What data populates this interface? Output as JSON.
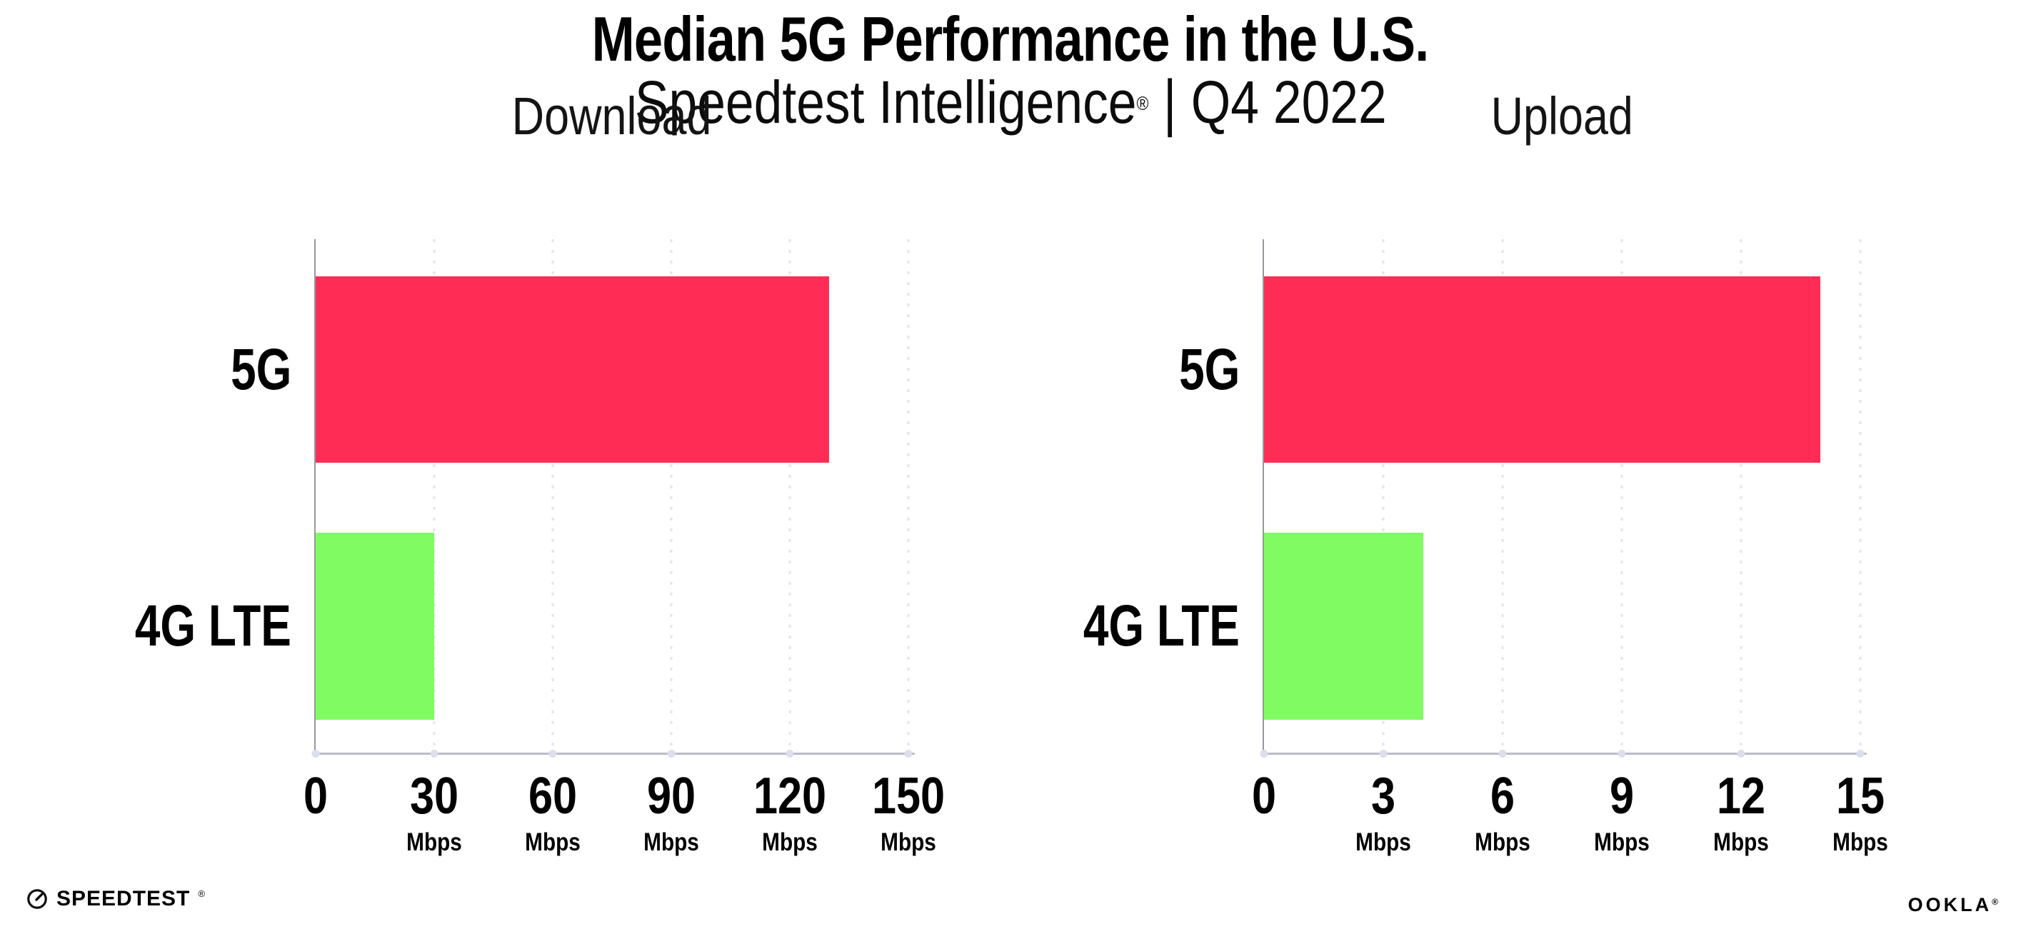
{
  "title": "Median 5G Performance in the U.S.",
  "subtitle": {
    "brand": "Speedtest Intelligence",
    "mark": "®",
    "separator": "|",
    "period": "Q4 2022"
  },
  "colors": {
    "bar_5g": "#ff2d55",
    "bar_4g_lte": "#81fb62",
    "gridline": "#e2e3ee",
    "axis_line": "#b9bcc6",
    "axis_spine": "#97979f",
    "tick_dot": "#dbdfeb",
    "text": "#000000"
  },
  "chart_data": [
    {
      "type": "bar",
      "orientation": "horizontal",
      "title": "Download",
      "categories": [
        "5G",
        "4G LTE"
      ],
      "values": [
        130,
        30
      ],
      "unit": "Mbps",
      "xlim": [
        0,
        150
      ],
      "xticks": [
        0,
        30,
        60,
        90,
        120,
        150
      ],
      "tick_unit_label": "Mbps",
      "grid": "vertical-dotted",
      "legend": "none",
      "series_colors": [
        "#ff2d55",
        "#81fb62"
      ]
    },
    {
      "type": "bar",
      "orientation": "horizontal",
      "title": "Upload",
      "categories": [
        "5G",
        "4G LTE"
      ],
      "values": [
        14,
        4
      ],
      "unit": "Mbps",
      "xlim": [
        0,
        15
      ],
      "xticks": [
        0,
        3,
        6,
        9,
        12,
        15
      ],
      "tick_unit_label": "Mbps",
      "grid": "vertical-dotted",
      "legend": "none",
      "series_colors": [
        "#ff2d55",
        "#81fb62"
      ]
    }
  ],
  "footer": {
    "speedtest_label": "SPEEDTEST",
    "speedtest_mark": "®",
    "ookla_label": "OOKLA",
    "ookla_mark": "®"
  }
}
